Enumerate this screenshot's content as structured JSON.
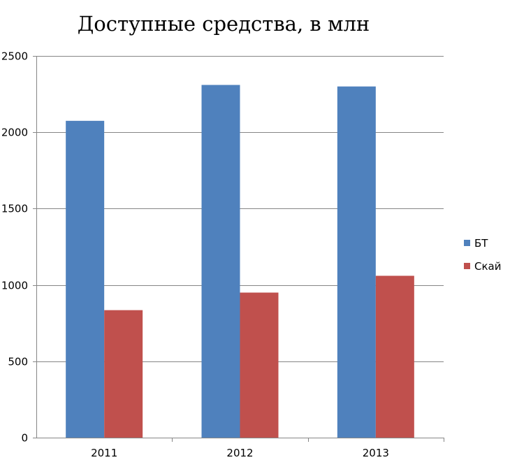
{
  "chart_data": {
    "type": "bar",
    "title": "Доступные средства, в млн",
    "xlabel": "",
    "ylabel": "",
    "categories": [
      "2011",
      "2012",
      "2013"
    ],
    "series": [
      {
        "name": "БТ",
        "values": [
          2075,
          2310,
          2300
        ],
        "color": "#4F81BD"
      },
      {
        "name": "Скай",
        "values": [
          835,
          950,
          1060
        ],
        "color": "#C0504D"
      }
    ],
    "ylim": [
      0,
      2500
    ],
    "yticks": [
      0,
      500,
      1000,
      1500,
      2000,
      2500
    ],
    "grid": true,
    "legend_position": "right"
  }
}
